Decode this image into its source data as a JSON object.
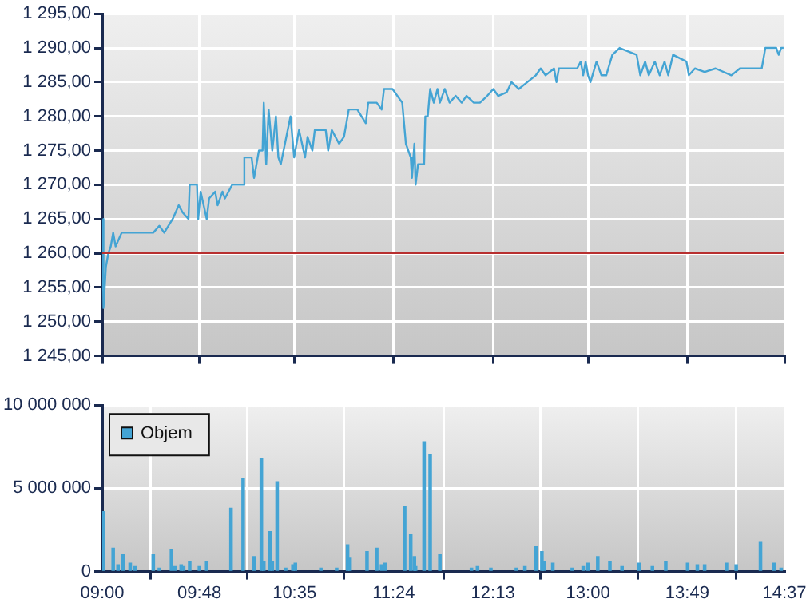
{
  "chart_data": [
    {
      "type": "line",
      "series": [
        {
          "color": "#44a4d4",
          "x": [
            9.0,
            9.01,
            9.03,
            9.05,
            9.07,
            9.09,
            9.11,
            9.16,
            9.42,
            9.47,
            9.51,
            9.58,
            9.63,
            9.66,
            9.71,
            9.72,
            9.78,
            9.79,
            9.81,
            9.86,
            9.88,
            9.93,
            9.95,
            9.99,
            10.01,
            10.07,
            10.16,
            10.17,
            10.23,
            10.25,
            10.29,
            10.32,
            10.33,
            10.35,
            10.37,
            10.4,
            10.43,
            10.45,
            10.47,
            10.55,
            10.58,
            10.62,
            10.67,
            10.69,
            10.73,
            10.75,
            10.84,
            10.86,
            10.89,
            10.95,
            10.99,
            11.03,
            11.1,
            11.17,
            11.19,
            11.26,
            11.3,
            11.32,
            11.39,
            11.47,
            11.5,
            11.54,
            11.55,
            11.57,
            11.58,
            11.6,
            11.65,
            11.66,
            11.68,
            11.7,
            11.73,
            11.76,
            11.78,
            11.82,
            11.86,
            11.91,
            11.96,
            12.0,
            12.06,
            12.11,
            12.17,
            12.22,
            12.26,
            12.33,
            12.37,
            12.43,
            12.5,
            12.57,
            12.61,
            12.65,
            12.72,
            12.74,
            12.76,
            12.91,
            12.94,
            12.96,
            12.98,
            13.0,
            13.02,
            13.07,
            13.11,
            13.15,
            13.2,
            13.26,
            13.4,
            13.43,
            13.47,
            13.5,
            13.55,
            13.59,
            13.63,
            13.66,
            13.7,
            13.81,
            13.83,
            13.88,
            13.96,
            14.05,
            14.18,
            14.25,
            14.43,
            14.44,
            14.46,
            14.55,
            14.57,
            14.59,
            14.61
          ],
          "values": [
            1265,
            1252,
            1258,
            1260,
            1261,
            1263,
            1261,
            1263,
            1263,
            1264,
            1263,
            1265,
            1267,
            1266,
            1265,
            1270,
            1270,
            1265,
            1269,
            1265,
            1268,
            1269,
            1267,
            1269,
            1268,
            1270,
            1270,
            1274,
            1274,
            1271,
            1275,
            1275,
            1282,
            1273,
            1281,
            1275,
            1280,
            1274,
            1273,
            1280,
            1274,
            1278,
            1274,
            1277,
            1275,
            1278,
            1278,
            1275,
            1278,
            1276,
            1277,
            1281,
            1281,
            1279,
            1282,
            1282,
            1281,
            1284,
            1284,
            1282,
            1276,
            1274,
            1271,
            1276,
            1270,
            1273,
            1273,
            1280,
            1280,
            1284,
            1282,
            1284,
            1282,
            1284,
            1282,
            1283,
            1282,
            1283,
            1282,
            1282,
            1283,
            1284,
            1283,
            1283.5,
            1285,
            1284,
            1285,
            1286,
            1287,
            1286,
            1287,
            1285,
            1287,
            1287,
            1288,
            1286,
            1288,
            1286,
            1285,
            1288,
            1286,
            1286,
            1289,
            1290,
            1289,
            1286,
            1288,
            1286,
            1288,
            1286,
            1288,
            1286,
            1289,
            1288,
            1286,
            1287,
            1286.5,
            1287,
            1286,
            1287,
            1287,
            1288,
            1290,
            1290,
            1289,
            1290,
            1290
          ]
        }
      ],
      "xlim": [
        9,
        14.617
      ],
      "xticks": [
        {
          "value": 9,
          "label": null
        },
        {
          "value": 9.8,
          "label": null
        },
        {
          "value": 10.583,
          "label": null
        },
        {
          "value": 11.4,
          "label": null
        },
        {
          "value": 12.217,
          "label": null
        },
        {
          "value": 13,
          "label": null
        },
        {
          "value": 13.817,
          "label": null
        },
        {
          "value": 14.617,
          "label": null
        }
      ],
      "ylim": [
        1245,
        1295
      ],
      "yticks": [
        {
          "value": 1245,
          "label": "1 245,00"
        },
        {
          "value": 1250,
          "label": "1 250,00"
        },
        {
          "value": 1255,
          "label": "1 255,00"
        },
        {
          "value": 1260,
          "label": "1 260,00"
        },
        {
          "value": 1265,
          "label": "1 265,00"
        },
        {
          "value": 1270,
          "label": "1 270,00"
        },
        {
          "value": 1275,
          "label": "1 275,00"
        },
        {
          "value": 1280,
          "label": "1 280,00"
        },
        {
          "value": 1285,
          "label": "1 285,00"
        },
        {
          "value": 1290,
          "label": "1 290,00"
        },
        {
          "value": 1295,
          "label": "1 295,00"
        }
      ],
      "ref_lines": [
        {
          "axis": "y",
          "value": 1260,
          "color": "#b83030"
        }
      ],
      "grid": true,
      "tick_labels": "y"
    },
    {
      "type": "bar",
      "series": [
        {
          "name": "Objem",
          "color": "#44a4d4",
          "x": [
            9.01,
            9.09,
            9.13,
            9.17,
            9.23,
            9.27,
            9.42,
            9.47,
            9.57,
            9.6,
            9.65,
            9.67,
            9.72,
            9.8,
            9.86,
            10.06,
            10.16,
            10.25,
            10.31,
            10.33,
            10.38,
            10.4,
            10.44,
            10.51,
            10.57,
            10.59,
            10.8,
            10.93,
            11.02,
            11.04,
            11.18,
            11.26,
            11.3,
            11.33,
            11.49,
            11.54,
            11.57,
            11.58,
            11.65,
            11.7,
            11.78,
            12.04,
            12.09,
            12.2,
            12.41,
            12.48,
            12.57,
            12.62,
            12.64,
            12.71,
            12.87,
            12.96,
            13.0,
            13.08,
            13.18,
            13.28,
            13.42,
            13.53,
            13.64,
            13.82,
            13.9,
            13.96,
            14.14,
            14.22,
            14.42,
            14.53,
            14.59
          ],
          "values": [
            3600000,
            1400000,
            400000,
            1000000,
            500000,
            300000,
            1000000,
            200000,
            1300000,
            300000,
            400000,
            300000,
            600000,
            300000,
            600000,
            3800000,
            5600000,
            900000,
            6800000,
            600000,
            2400000,
            600000,
            5400000,
            200000,
            400000,
            500000,
            200000,
            200000,
            1600000,
            800000,
            1200000,
            1400000,
            400000,
            500000,
            3900000,
            2200000,
            900000,
            300000,
            7800000,
            7000000,
            1000000,
            200000,
            300000,
            200000,
            200000,
            300000,
            1500000,
            1200000,
            600000,
            500000,
            200000,
            300000,
            500000,
            900000,
            600000,
            300000,
            500000,
            300000,
            600000,
            500000,
            400000,
            400000,
            500000,
            400000,
            1800000,
            500000,
            200000
          ]
        }
      ],
      "xlim": [
        9,
        14.617
      ],
      "xticks": [
        {
          "value": 9,
          "label": "09:00"
        },
        {
          "value": 9.8,
          "label": "09:48"
        },
        {
          "value": 10.583,
          "label": "10:35"
        },
        {
          "value": 11.4,
          "label": "11:24"
        },
        {
          "value": 12.217,
          "label": "12:13"
        },
        {
          "value": 13,
          "label": "13:00"
        },
        {
          "value": 13.817,
          "label": "13:49"
        },
        {
          "value": 14.617,
          "label": "14:37"
        }
      ],
      "ylim": [
        0,
        10000000
      ],
      "yticks": [
        0,
        {
          "value": 5000000,
          "label": "5 000 000"
        },
        {
          "value": 10000000,
          "label": "10 000 000"
        }
      ],
      "grid": true,
      "legend": "top left"
    }
  ]
}
